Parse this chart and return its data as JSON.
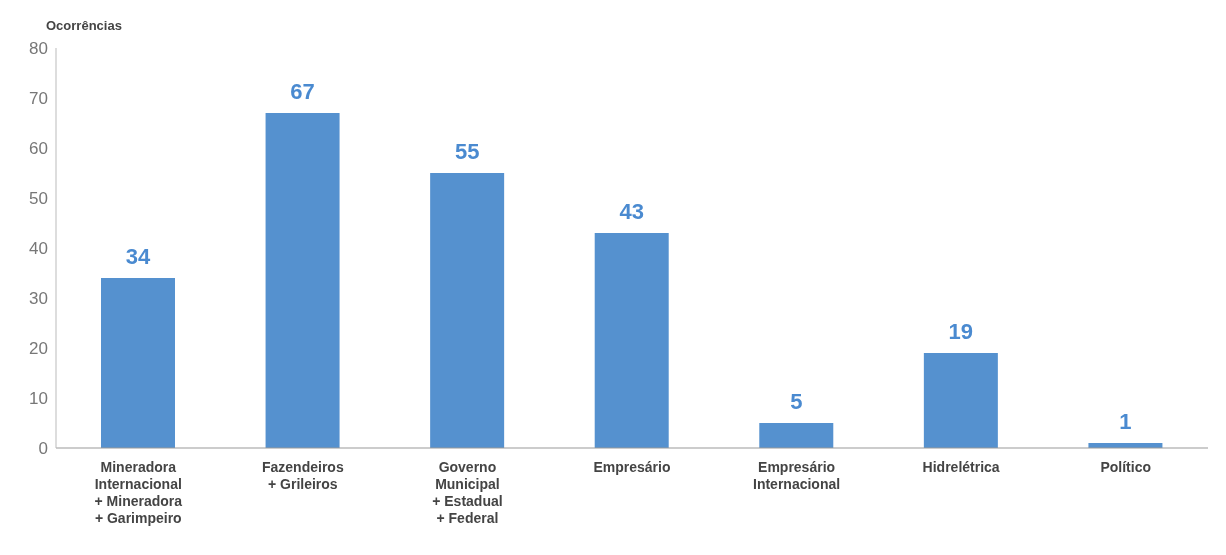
{
  "chart_data": {
    "type": "bar",
    "ylabel": "Ocorrências",
    "categories": [
      "Mineradora Internacional + Mineradora + Garimpeiro",
      "Fazendeiros + Grileiros",
      "Governo Municipal + Estadual + Federal",
      "Empresário",
      "Empresário Internacional",
      "Hidrelétrica",
      "Político"
    ],
    "values": [
      34,
      67,
      55,
      43,
      5,
      19,
      1
    ],
    "color": "#5591cf",
    "ylim": [
      0,
      80
    ],
    "yticks": [
      0,
      10,
      20,
      30,
      40,
      50,
      60,
      70,
      80
    ],
    "grid": false,
    "data_labels": true
  }
}
